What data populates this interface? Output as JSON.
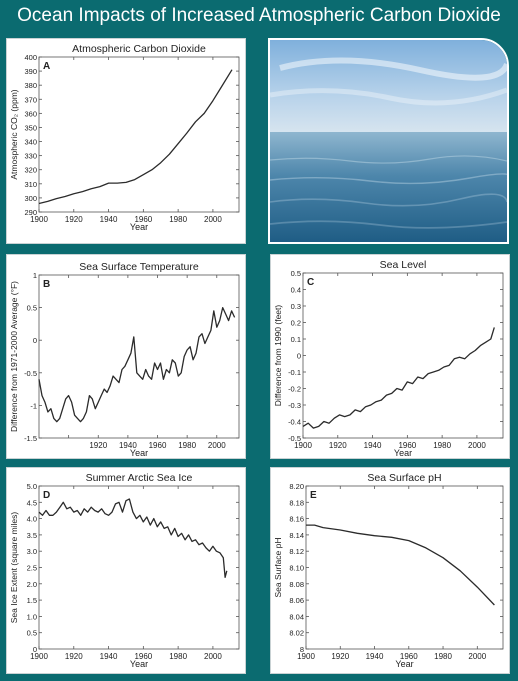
{
  "page": {
    "title": "Ocean Impacts of Increased Atmospheric Carbon Dioxide"
  },
  "colors": {
    "background": "#0b6b70",
    "line": "#2b2b2b"
  },
  "photo": {
    "icon": "ocean-horizon-photo"
  },
  "chart_data": [
    {
      "id": "A",
      "type": "line",
      "title": "Atmospheric Carbon Dioxide",
      "panel_label": "A",
      "xlabel": "Year",
      "ylabel": "Atmospheric CO₂ (ppm)",
      "xlim": [
        1900,
        2015
      ],
      "ylim": [
        290,
        400
      ],
      "xticks": [
        1900,
        1920,
        1940,
        1960,
        1980,
        2000
      ],
      "yticks": [
        290,
        300,
        310,
        320,
        330,
        340,
        350,
        360,
        370,
        380,
        390,
        400
      ],
      "series": [
        {
          "x": [
            1900,
            1905,
            1910,
            1915,
            1920,
            1925,
            1930,
            1935,
            1940,
            1945,
            1950,
            1955,
            1960,
            1965,
            1970,
            1975,
            1980,
            1985,
            1990,
            1995,
            2000,
            2005,
            2011
          ],
          "y": [
            296,
            297.5,
            299.5,
            301,
            303,
            304.5,
            306.5,
            308,
            310.5,
            310.5,
            311,
            313,
            316.5,
            320,
            325,
            331,
            338.5,
            346,
            354,
            360,
            369,
            379,
            391
          ]
        }
      ]
    },
    {
      "id": "B",
      "type": "line",
      "title": "Sea Surface Temperature",
      "panel_label": "B",
      "xlabel": "Year",
      "ylabel": "Difference from 1971-2000 Average (°F)",
      "xlim": [
        1880,
        2015
      ],
      "ylim": [
        -1.5,
        1
      ],
      "xticks": [
        1900,
        1920,
        1940,
        1960,
        1980,
        2000
      ],
      "xticklabels": [
        "",
        "1920",
        "1940",
        "1960",
        "1980",
        "2000"
      ],
      "yticks": [
        -1.5,
        -1,
        -0.5,
        0,
        0.5,
        1
      ],
      "yticklabels": [
        "-1.5",
        "-1",
        "-0.5",
        "0",
        "0.5",
        "1"
      ],
      "series": [
        {
          "x": [
            1880,
            1882,
            1884,
            1886,
            1888,
            1890,
            1892,
            1894,
            1896,
            1898,
            1900,
            1902,
            1904,
            1906,
            1908,
            1910,
            1912,
            1914,
            1916,
            1918,
            1920,
            1922,
            1924,
            1926,
            1928,
            1930,
            1932,
            1934,
            1936,
            1938,
            1940,
            1942,
            1944,
            1946,
            1948,
            1950,
            1952,
            1954,
            1956,
            1958,
            1960,
            1962,
            1964,
            1966,
            1968,
            1970,
            1972,
            1974,
            1976,
            1978,
            1980,
            1982,
            1984,
            1986,
            1988,
            1990,
            1992,
            1994,
            1996,
            1998,
            2000,
            2002,
            2004,
            2006,
            2008,
            2010,
            2012
          ],
          "y": [
            -0.6,
            -0.85,
            -0.95,
            -1.1,
            -1.05,
            -1.2,
            -1.25,
            -1.2,
            -1.05,
            -0.9,
            -0.85,
            -0.95,
            -1.15,
            -1.2,
            -1.25,
            -1.2,
            -1.1,
            -0.85,
            -0.9,
            -1.05,
            -0.95,
            -0.85,
            -0.75,
            -0.8,
            -0.7,
            -0.55,
            -0.6,
            -0.65,
            -0.45,
            -0.4,
            -0.3,
            -0.2,
            0.05,
            -0.5,
            -0.55,
            -0.6,
            -0.45,
            -0.55,
            -0.6,
            -0.35,
            -0.45,
            -0.35,
            -0.6,
            -0.45,
            -0.5,
            -0.3,
            -0.35,
            -0.55,
            -0.5,
            -0.25,
            -0.15,
            -0.1,
            -0.3,
            -0.2,
            0.05,
            0.1,
            -0.05,
            0.05,
            0.15,
            0.45,
            0.2,
            0.3,
            0.5,
            0.4,
            0.3,
            0.45,
            0.35
          ]
        }
      ]
    },
    {
      "id": "C",
      "type": "line",
      "title": "Sea Level",
      "panel_label": "C",
      "xlabel": "Year",
      "ylabel": "Difference from 1990 (feet)",
      "xlim": [
        1900,
        2015
      ],
      "ylim": [
        -0.5,
        0.5
      ],
      "xticks": [
        1900,
        1920,
        1940,
        1960,
        1980,
        2000
      ],
      "yticks": [
        -0.5,
        -0.4,
        -0.3,
        -0.2,
        -0.1,
        0,
        0.1,
        0.2,
        0.3,
        0.4,
        0.5
      ],
      "yticklabels": [
        "-0.5",
        "-0.4",
        "-0.3",
        "-0.2",
        "-0.1",
        "0",
        "0.1",
        "0.2",
        "0.3",
        "0.4",
        "0.5"
      ],
      "series": [
        {
          "x": [
            1900,
            1903,
            1906,
            1909,
            1912,
            1915,
            1918,
            1921,
            1924,
            1927,
            1930,
            1933,
            1936,
            1939,
            1942,
            1945,
            1948,
            1951,
            1954,
            1957,
            1960,
            1963,
            1966,
            1969,
            1972,
            1975,
            1978,
            1981,
            1984,
            1987,
            1990,
            1993,
            1996,
            1999,
            2002,
            2005,
            2008,
            2010
          ],
          "y": [
            -0.43,
            -0.41,
            -0.44,
            -0.43,
            -0.4,
            -0.41,
            -0.38,
            -0.36,
            -0.37,
            -0.36,
            -0.33,
            -0.34,
            -0.31,
            -0.3,
            -0.28,
            -0.27,
            -0.24,
            -0.23,
            -0.2,
            -0.21,
            -0.16,
            -0.17,
            -0.13,
            -0.14,
            -0.11,
            -0.1,
            -0.09,
            -0.07,
            -0.06,
            -0.02,
            -0.01,
            -0.02,
            0.01,
            0.03,
            0.06,
            0.08,
            0.1,
            0.17
          ]
        }
      ]
    },
    {
      "id": "D",
      "type": "line",
      "title": "Summer Arctic Sea Ice",
      "panel_label": "D",
      "xlabel": "Year",
      "ylabel": "Sea Ice Extent (square miles)",
      "xlim": [
        1900,
        2015
      ],
      "ylim": [
        0,
        5
      ],
      "xticks": [
        1900,
        1920,
        1940,
        1960,
        1980,
        2000
      ],
      "yticks": [
        0,
        0.5,
        1,
        1.5,
        2,
        2.5,
        3,
        3.5,
        4,
        4.5,
        5
      ],
      "yticklabels": [
        "0",
        "0.5",
        "1.0",
        "1.5",
        "2.0",
        "2.5",
        "3.0",
        "3.5",
        "4.0",
        "4.5",
        "5.0"
      ],
      "series": [
        {
          "x": [
            1900,
            1902,
            1904,
            1906,
            1908,
            1910,
            1912,
            1914,
            1916,
            1918,
            1920,
            1922,
            1924,
            1926,
            1928,
            1930,
            1932,
            1934,
            1936,
            1938,
            1940,
            1942,
            1944,
            1946,
            1948,
            1950,
            1952,
            1954,
            1956,
            1958,
            1960,
            1962,
            1964,
            1966,
            1968,
            1970,
            1972,
            1974,
            1976,
            1978,
            1980,
            1982,
            1984,
            1986,
            1988,
            1990,
            1992,
            1994,
            1996,
            1998,
            2000,
            2002,
            2004,
            2006,
            2007,
            2008
          ],
          "y": [
            4.2,
            4.1,
            4.25,
            4.1,
            4.1,
            4.2,
            4.35,
            4.5,
            4.3,
            4.35,
            4.2,
            4.25,
            4.1,
            4.3,
            4.2,
            4.35,
            4.25,
            4.2,
            4.3,
            4.15,
            4.1,
            4.2,
            4.45,
            4.5,
            4.2,
            4.55,
            4.6,
            4.2,
            4.0,
            4.1,
            3.9,
            4.05,
            3.8,
            4.0,
            3.75,
            3.9,
            3.7,
            3.75,
            3.5,
            3.7,
            3.45,
            3.55,
            3.35,
            3.5,
            3.3,
            3.35,
            3.2,
            3.25,
            3.1,
            3.0,
            3.15,
            3.0,
            2.95,
            2.8,
            2.2,
            2.4
          ]
        }
      ]
    },
    {
      "id": "E",
      "type": "line",
      "title": "Sea Surface pH",
      "panel_label": "E",
      "xlabel": "Year",
      "ylabel": "Sea Surface pH",
      "xlim": [
        1900,
        2015
      ],
      "ylim": [
        8.0,
        8.2
      ],
      "xticks": [
        1900,
        1920,
        1940,
        1960,
        1980,
        2000
      ],
      "yticks": [
        8.0,
        8.02,
        8.04,
        8.06,
        8.08,
        8.1,
        8.12,
        8.14,
        8.16,
        8.18,
        8.2
      ],
      "yticklabels": [
        "8",
        "8.02",
        "8.04",
        "8.06",
        "8.08",
        "8.10",
        "8.12",
        "8.14",
        "8.16",
        "8.18",
        "8.20"
      ],
      "series": [
        {
          "x": [
            1900,
            1905,
            1910,
            1920,
            1930,
            1940,
            1950,
            1960,
            1970,
            1980,
            1990,
            2000,
            2010
          ],
          "y": [
            8.152,
            8.152,
            8.149,
            8.146,
            8.142,
            8.139,
            8.137,
            8.133,
            8.124,
            8.112,
            8.096,
            8.076,
            8.054
          ]
        }
      ]
    }
  ]
}
